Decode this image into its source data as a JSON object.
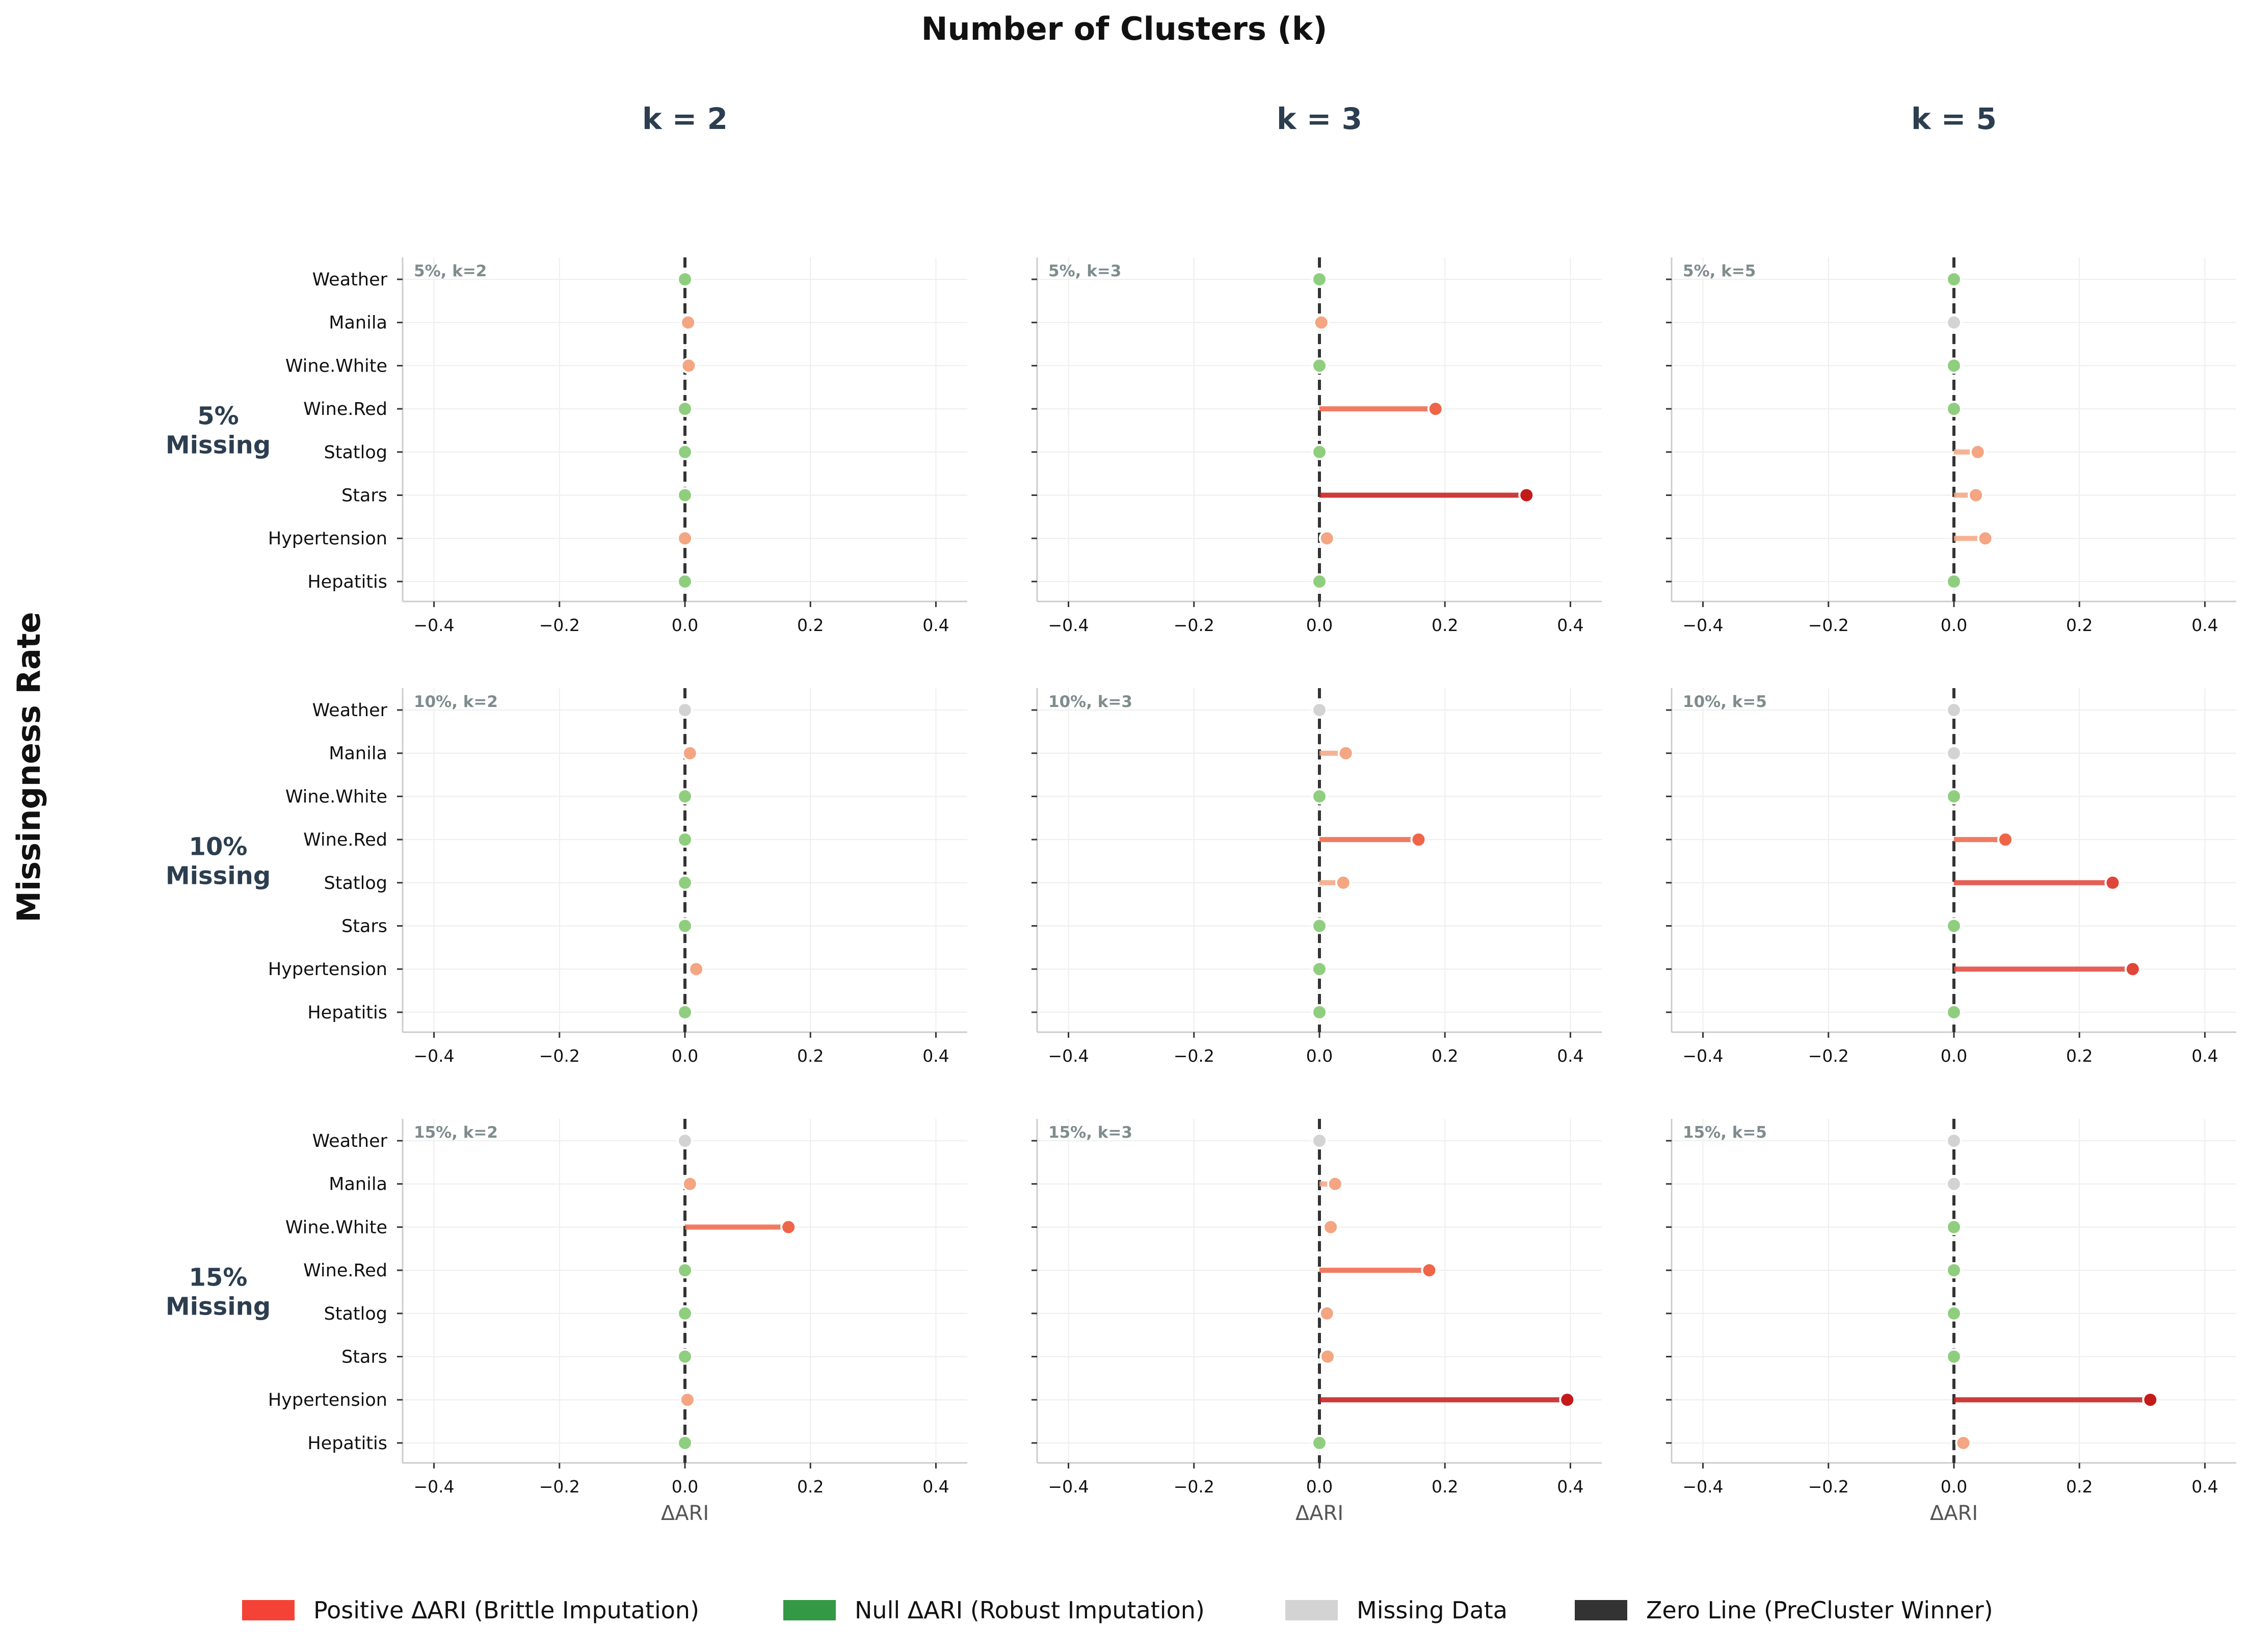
{
  "figure": {
    "col_header": "Number of Clusters (k)",
    "row_header": "Missingness Rate"
  },
  "columns": [
    "k = 2",
    "k = 3",
    "k = 5"
  ],
  "rows": [
    {
      "label_line1": "5%",
      "label_line2": "Missing"
    },
    {
      "label_line1": "10%",
      "label_line2": "Missing"
    },
    {
      "label_line1": "15%",
      "label_line2": "Missing"
    }
  ],
  "colors": {
    "zero_line": "#333333",
    "null_point": "#8fce7e",
    "missing_point": "#d3d3d3",
    "grid": "#eeeeee",
    "spine": "#cccccc",
    "positive_scale": [
      "#f4a582",
      "#ef6548",
      "#e0453a",
      "#c41a1a"
    ]
  },
  "legend": [
    {
      "label": "Positive ΔARI (Brittle Imputation)",
      "color": "#f44336"
    },
    {
      "label": "Null ΔARI (Robust Imputation)",
      "color": "#339944"
    },
    {
      "label": "Missing Data",
      "color": "#d3d3d3"
    },
    {
      "label": "Zero Line (PreCluster Winner)",
      "color": "#333333"
    }
  ],
  "chart_data": {
    "type": "lollipop",
    "xlabel": "ΔARI",
    "xlim": [
      -0.45,
      0.45
    ],
    "xticks": [
      -0.4,
      -0.2,
      0.0,
      0.2,
      0.4
    ],
    "xtick_labels": [
      "−0.4",
      "−0.2",
      "0.0",
      "0.2",
      "0.4"
    ],
    "grid": true,
    "categories": [
      "Weather",
      "Manila",
      "Wine.White",
      "Wine.Red",
      "Statlog",
      "Stars",
      "Hypertension",
      "Hepatitis"
    ],
    "panels": [
      {
        "tag": "5%, k=2",
        "values": [
          0.0,
          0.005,
          0.006,
          0.0,
          0.0,
          0.0,
          0.0,
          0.0
        ],
        "status": [
          "null",
          "pos",
          "pos",
          "null",
          "null",
          "null",
          "pos",
          "null"
        ]
      },
      {
        "tag": "5%, k=3",
        "values": [
          0.0,
          0.003,
          0.0,
          0.185,
          0.0,
          0.33,
          0.012,
          0.0
        ],
        "status": [
          "null",
          "pos",
          "null",
          "pos",
          "null",
          "pos",
          "pos",
          "null"
        ]
      },
      {
        "tag": "5%, k=5",
        "values": [
          0.0,
          0.0,
          0.0,
          0.0,
          0.038,
          0.035,
          0.05,
          0.0
        ],
        "status": [
          "null",
          "missing",
          "null",
          "null",
          "pos",
          "pos",
          "pos",
          "null"
        ]
      },
      {
        "tag": "10%, k=2",
        "values": [
          0.0,
          0.008,
          0.0,
          0.0,
          0.0,
          0.0,
          0.018,
          0.0
        ],
        "status": [
          "missing",
          "pos",
          "null",
          "null",
          "null",
          "null",
          "pos",
          "null"
        ]
      },
      {
        "tag": "10%, k=3",
        "values": [
          0.0,
          0.042,
          0.0,
          0.158,
          0.038,
          0.0,
          0.0,
          0.0
        ],
        "status": [
          "missing",
          "pos",
          "null",
          "pos",
          "pos",
          "null",
          "null",
          "null"
        ]
      },
      {
        "tag": "10%, k=5",
        "values": [
          0.0,
          0.0,
          0.0,
          0.082,
          0.253,
          0.0,
          0.285,
          0.0
        ],
        "status": [
          "missing",
          "missing",
          "null",
          "pos",
          "pos",
          "null",
          "pos",
          "null"
        ]
      },
      {
        "tag": "15%, k=2",
        "values": [
          0.0,
          0.008,
          0.165,
          0.0,
          0.0,
          0.0,
          0.004,
          0.0
        ],
        "status": [
          "missing",
          "pos",
          "pos",
          "null",
          "null",
          "null",
          "pos",
          "null"
        ]
      },
      {
        "tag": "15%, k=3",
        "values": [
          0.0,
          0.025,
          0.018,
          0.175,
          0.012,
          0.013,
          0.395,
          0.0
        ],
        "status": [
          "missing",
          "pos",
          "pos",
          "pos",
          "pos",
          "pos",
          "pos",
          "null"
        ]
      },
      {
        "tag": "15%, k=5",
        "values": [
          0.0,
          0.0,
          0.0,
          0.0,
          0.0,
          0.0,
          0.313,
          0.015
        ],
        "status": [
          "missing",
          "missing",
          "null",
          "null",
          "null",
          "null",
          "pos",
          "pos"
        ]
      }
    ]
  }
}
